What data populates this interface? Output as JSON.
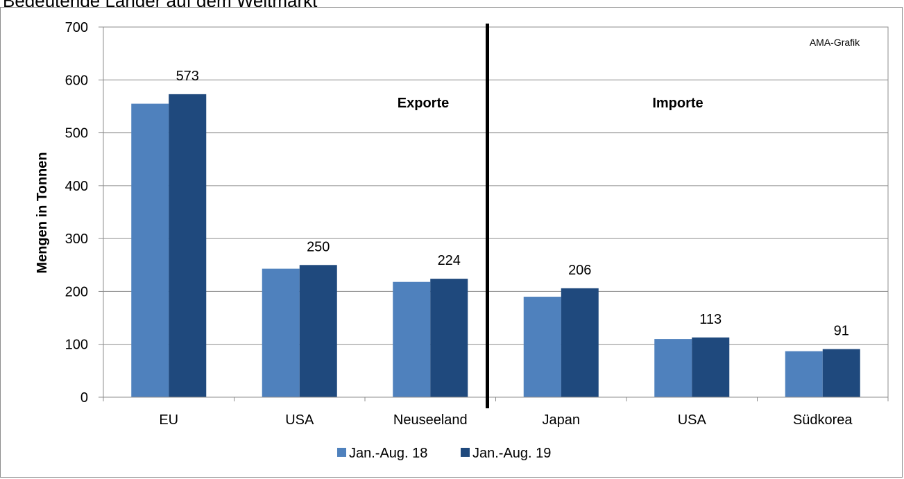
{
  "page_title": "Bedeutende Länder auf dem Weltmarkt",
  "chart_data": {
    "type": "bar",
    "title": "",
    "xlabel": "",
    "ylabel": "Mengen in Tonnen",
    "ylim": [
      0,
      700
    ],
    "yticks": [
      0,
      100,
      200,
      300,
      400,
      500,
      600,
      700
    ],
    "grid": true,
    "categories": [
      "EU",
      "USA",
      "Neuseeland",
      "Japan",
      "USA",
      "Südkorea"
    ],
    "series": [
      {
        "name": "Jan.-Aug. 18",
        "color": "#4F81BD",
        "values": [
          555,
          243,
          218,
          190,
          110,
          87
        ]
      },
      {
        "name": "Jan.-Aug. 19",
        "color": "#1F497D",
        "values": [
          573,
          250,
          224,
          206,
          113,
          91
        ]
      }
    ],
    "data_labels_series": 1,
    "groups": [
      {
        "label": "Exporte",
        "categories": [
          0,
          1,
          2
        ]
      },
      {
        "label": "Importe",
        "categories": [
          3,
          4,
          5
        ]
      }
    ],
    "annotation": "AMA-Grafik",
    "legend_position": "bottom"
  }
}
